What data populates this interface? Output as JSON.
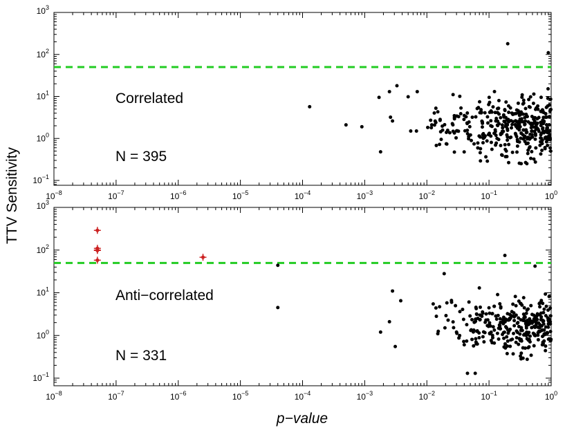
{
  "figure": {
    "ylabel": "TTV Sensitivity",
    "xlabel": "p−value",
    "colors": {
      "threshold": "#22cc22",
      "points": "#000000",
      "highlight": "#cc2222",
      "axes": "#000000"
    }
  },
  "chart_data": [
    {
      "type": "scatter",
      "title": "Correlated",
      "annotation": "N = 395",
      "xscale": "log",
      "yscale": "log",
      "xlim": [
        1e-08,
        1
      ],
      "ylim": [
        0.07,
        1000
      ],
      "xticks": [
        {
          "base": "10",
          "exp": "−8"
        },
        {
          "base": "10",
          "exp": "−7"
        },
        {
          "base": "10",
          "exp": "−6"
        },
        {
          "base": "10",
          "exp": "−5"
        },
        {
          "base": "10",
          "exp": "−4"
        },
        {
          "base": "10",
          "exp": "−3"
        },
        {
          "base": "10",
          "exp": "−2"
        },
        {
          "base": "10",
          "exp": "−1"
        },
        {
          "base": "10",
          "exp": "0"
        }
      ],
      "yticks": [
        {
          "base": "10",
          "exp": "−1"
        },
        {
          "base": "10",
          "exp": "0"
        },
        {
          "base": "10",
          "exp": "1"
        },
        {
          "base": "10",
          "exp": "2"
        },
        {
          "base": "10",
          "exp": "3"
        }
      ],
      "threshold": 50,
      "series": [
        {
          "name": "sample",
          "points": [
            [
              0.00013,
              5.7
            ],
            [
              0.0005,
              2.1
            ],
            [
              0.0009,
              1.9
            ],
            [
              0.0017,
              9.5
            ],
            [
              0.0018,
              0.48
            ],
            [
              0.0025,
              13
            ],
            [
              0.0026,
              3.2
            ],
            [
              0.0028,
              2.6
            ],
            [
              0.0033,
              18
            ],
            [
              0.005,
              9.8
            ],
            [
              0.0055,
              1.5
            ],
            [
              0.0068,
              1.5
            ],
            [
              0.007,
              13
            ],
            [
              0.0115,
              2.7
            ],
            [
              0.012,
              2.1
            ],
            [
              0.0118,
              1.8
            ],
            [
              0.0142,
              0.68
            ],
            [
              0.015,
              4.3
            ],
            [
              0.016,
              0.72
            ],
            [
              0.017,
              0.95
            ],
            [
              0.2,
              180
            ],
            [
              0.9,
              110
            ]
          ],
          "generated": {
            "count": 373,
            "xlog": [
              -2.1,
              0
            ],
            "ylog": [
              -0.6,
              1.55
            ],
            "seed": 7
          }
        }
      ]
    },
    {
      "type": "scatter",
      "title": "Anti−correlated",
      "annotation": "N = 331",
      "xscale": "log",
      "yscale": "log",
      "xlim": [
        1e-08,
        1
      ],
      "ylim": [
        0.07,
        1000
      ],
      "xticks": [
        {
          "base": "10",
          "exp": "−8"
        },
        {
          "base": "10",
          "exp": "−7"
        },
        {
          "base": "10",
          "exp": "−6"
        },
        {
          "base": "10",
          "exp": "−5"
        },
        {
          "base": "10",
          "exp": "−4"
        },
        {
          "base": "10",
          "exp": "−3"
        },
        {
          "base": "10",
          "exp": "−2"
        },
        {
          "base": "10",
          "exp": "−1"
        },
        {
          "base": "10",
          "exp": "0"
        }
      ],
      "yticks": [
        {
          "base": "10",
          "exp": "−1"
        },
        {
          "base": "10",
          "exp": "0"
        },
        {
          "base": "10",
          "exp": "1"
        },
        {
          "base": "10",
          "exp": "2"
        },
        {
          "base": "10",
          "exp": "3"
        }
      ],
      "threshold": 50,
      "series": [
        {
          "name": "sample",
          "points": [
            [
              4e-05,
              44
            ],
            [
              4e-05,
              4.5
            ],
            [
              0.0018,
              1.2
            ],
            [
              0.0025,
              2.1
            ],
            [
              0.0028,
              11
            ],
            [
              0.0031,
              0.55
            ],
            [
              0.0038,
              6.5
            ],
            [
              0.014,
              4.4
            ],
            [
              0.015,
              1.1
            ],
            [
              0.019,
              28
            ],
            [
              0.021,
              5.8
            ],
            [
              0.025,
              6
            ],
            [
              0.03,
              1.2
            ],
            [
              0.045,
              0.13
            ],
            [
              0.06,
              0.13
            ],
            [
              0.18,
              75
            ],
            [
              0.55,
              42
            ]
          ],
          "generated": {
            "count": 314,
            "xlog": [
              -2.1,
              0
            ],
            "ylog": [
              -0.6,
              1.45
            ],
            "seed": 19
          }
        },
        {
          "name": "highlighted",
          "marker": "red-star",
          "points": [
            [
              5e-08,
              290
            ],
            [
              5e-08,
              110
            ],
            [
              5e-08,
              100
            ],
            [
              5e-08,
              98
            ],
            [
              5e-08,
              58
            ],
            [
              2.5e-06,
              68
            ]
          ]
        }
      ]
    }
  ]
}
